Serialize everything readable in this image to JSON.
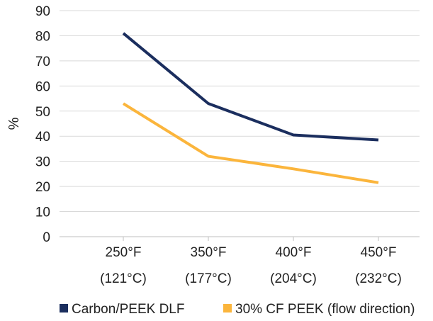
{
  "chart_data": {
    "type": "line",
    "title": "",
    "xlabel": "",
    "ylabel": "%",
    "ylim": [
      0,
      90
    ],
    "yticks": [
      "0",
      "10",
      "20",
      "30",
      "40",
      "50",
      "60",
      "70",
      "80",
      "90"
    ],
    "grid": "horizontal",
    "legend_position": "bottom",
    "categories": [
      {
        "line1": "250°F",
        "line2": "(121°C)"
      },
      {
        "line1": "350°F",
        "line2": "(177°C)"
      },
      {
        "line1": "400°F",
        "line2": "(204°C)"
      },
      {
        "line1": "450°F",
        "line2": "(232°C)"
      }
    ],
    "series": [
      {
        "name": "Carbon/PEEK DLF",
        "color": "#1b2e5e",
        "values": [
          81,
          53,
          40.5,
          38.5
        ]
      },
      {
        "name": "30% CF PEEK (flow direction)",
        "color": "#fbb53c",
        "values": [
          53,
          32,
          27,
          21.5
        ]
      }
    ]
  }
}
